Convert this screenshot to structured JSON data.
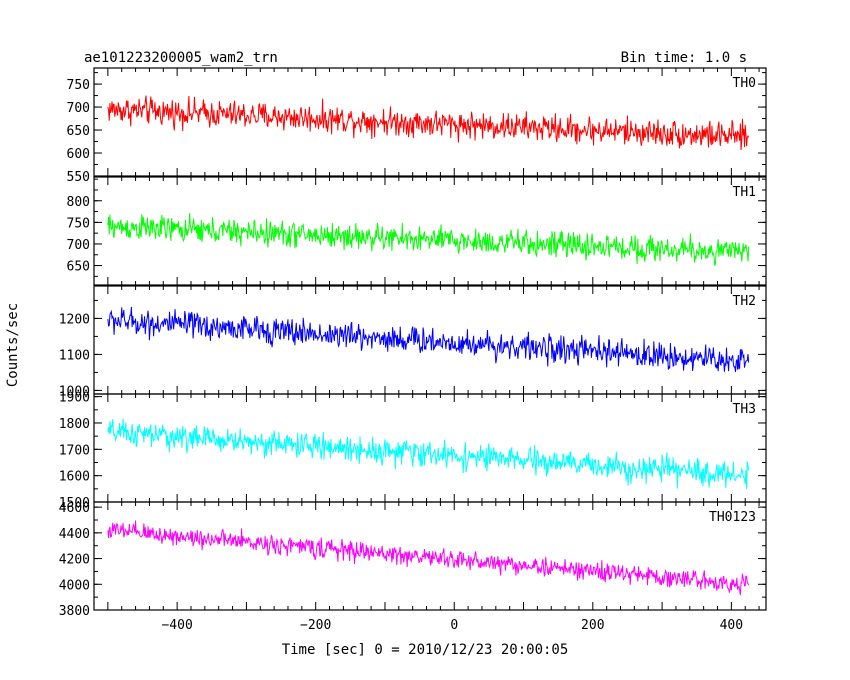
{
  "header": {
    "title": "ae101223200005_wam2_trn",
    "bin_time": "Bin time: 1.0 s"
  },
  "chart_data": {
    "type": "line",
    "xlabel": "Time [sec] 0 = 2010/12/23 20:00:05",
    "ylabel": "Counts/sec",
    "xlim": [
      -520,
      450
    ],
    "x_range_data": [
      -500,
      425
    ],
    "x_ticks": [
      -400,
      -200,
      0,
      200,
      400
    ],
    "x_tick_labels": [
      "−400",
      "−200",
      "0",
      "200",
      "400"
    ],
    "bin_time_s": 1.0,
    "panels": [
      {
        "name": "TH0",
        "color": "#ff0000",
        "ylim": [
          550,
          785
        ],
        "yticks": [
          550,
          600,
          650,
          700,
          750
        ],
        "trend_start": 695,
        "trend_end": 635,
        "noise_amplitude": 28
      },
      {
        "name": "TH1",
        "color": "#00ff00",
        "ylim": [
          605,
          855
        ],
        "yticks": [
          650,
          700,
          750,
          800
        ],
        "trend_start": 740,
        "trend_end": 680,
        "noise_amplitude": 28
      },
      {
        "name": "TH2",
        "color": "#0000ff",
        "ylim": [
          990,
          1290
        ],
        "yticks": [
          1000,
          1100,
          1200
        ],
        "trend_start": 1195,
        "trend_end": 1080,
        "noise_amplitude": 35
      },
      {
        "name": "TH3",
        "color": "#00ffff",
        "ylim": [
          1500,
          1910
        ],
        "yticks": [
          1500,
          1600,
          1700,
          1800,
          1900
        ],
        "trend_start": 1765,
        "trend_end": 1600,
        "noise_amplitude": 45
      },
      {
        "name": "TH0123",
        "color": "#ff00ff",
        "ylim": [
          3800,
          4640
        ],
        "yticks": [
          3800,
          4000,
          4200,
          4400,
          4600
        ],
        "trend_start": 4420,
        "trend_end": 4000,
        "noise_amplitude": 70
      }
    ]
  }
}
